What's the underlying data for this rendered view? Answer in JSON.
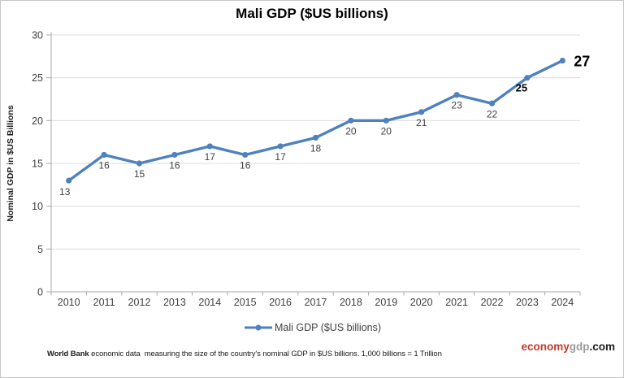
{
  "page": {
    "title": "Mali GDP ($US billions)"
  },
  "chart_data": {
    "type": "line",
    "title": "Mali GDP ($US billions)",
    "categories": [
      "2010",
      "2011",
      "2012",
      "2013",
      "2014",
      "2015",
      "2016",
      "2017",
      "2018",
      "2019",
      "2020",
      "2021",
      "2022",
      "2023",
      "2024"
    ],
    "series": [
      {
        "name": "Mali GDP ($US billions)",
        "values": [
          13,
          16,
          15,
          16,
          17,
          16,
          17,
          18,
          20,
          20,
          21,
          23,
          22,
          25,
          27
        ],
        "color": "#4F81BD"
      }
    ],
    "data_labels": [
      "13",
      "16",
      "15",
      "16",
      "17",
      "16",
      "17",
      "18",
      "20",
      "20",
      "21",
      "23",
      "22",
      "25",
      "27"
    ],
    "bold_label_indices": [
      13,
      14
    ],
    "xlabel": "",
    "ylabel": "Nominal GDP in $US Billions",
    "ylim": [
      0,
      30
    ],
    "yticks": [
      0,
      5,
      10,
      15,
      20,
      25,
      30
    ],
    "grid": "horizontal-only",
    "legend_position": "bottom",
    "colors": {
      "line": "#4F81BD",
      "grid": "#dcdcdc",
      "axis": "#a8a8a8",
      "tick_label": "#404040",
      "data_label": "#404040",
      "emphasis_label": "#000000",
      "axis_title": "#1a1a1a"
    }
  },
  "legend": {
    "label": "Mali GDP ($US billions)"
  },
  "footer": {
    "source": "World Bank",
    "note": " economic data  measuring the size of the country's nominal GDP in $US billions. 1,000 billions = 1 Trillion"
  },
  "logo": {
    "economy": "economy",
    "gdp": "gdp",
    "com": ".com",
    "economy_color": "#c0392b",
    "gdp_color": "#9a9a9a",
    "com_color": "#1c1c1c"
  }
}
